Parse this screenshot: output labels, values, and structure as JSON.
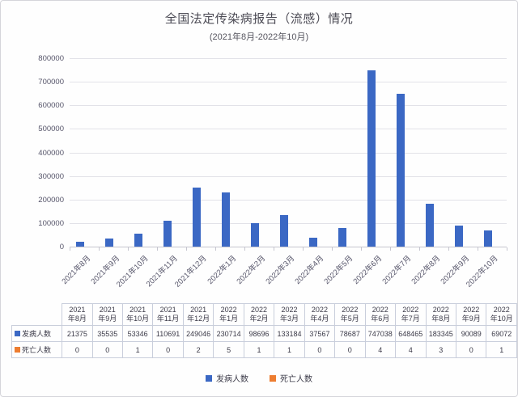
{
  "title": "全国法定传染病报告（流感）情况",
  "subtitle": "(2021年8月-2022年10月)",
  "chart_data": {
    "type": "bar",
    "title": "全国法定传染病报告（流感）情况",
    "subtitle": "(2021年8月-2022年10月)",
    "categories": [
      "2021年8月",
      "2021年9月",
      "2021年10月",
      "2021年11月",
      "2021年12月",
      "2022年1月",
      "2022年2月",
      "2022年3月",
      "2022年4月",
      "2022年5月",
      "2022年6月",
      "2022年7月",
      "2022年8月",
      "2022年9月",
      "2022年10月"
    ],
    "series": [
      {
        "name": "发病人数",
        "color": "#3b68c4",
        "values": [
          21375,
          35535,
          53346,
          110691,
          249046,
          230714,
          98696,
          133184,
          37567,
          78687,
          747038,
          648465,
          183345,
          90089,
          69072
        ]
      },
      {
        "name": "死亡人数",
        "color": "#ed7d31",
        "values": [
          0,
          0,
          1,
          0,
          2,
          5,
          1,
          1,
          0,
          0,
          4,
          4,
          3,
          0,
          1
        ]
      }
    ],
    "ylim": [
      0,
      800000
    ],
    "yticks": [
      0,
      100000,
      200000,
      300000,
      400000,
      500000,
      600000,
      700000,
      800000
    ],
    "grid": true,
    "legend_position": "bottom",
    "data_table_shown": true
  },
  "colors": {
    "bar_blue": "#3b68c4",
    "bar_orange": "#ed7d31",
    "gridline": "#e2e2e8",
    "axis_line": "#c6c6cf",
    "table_border": "#c9cedb",
    "text_dark": "#3b3a48",
    "axis_text": "#56556a",
    "title_text": "#4b4a54"
  }
}
